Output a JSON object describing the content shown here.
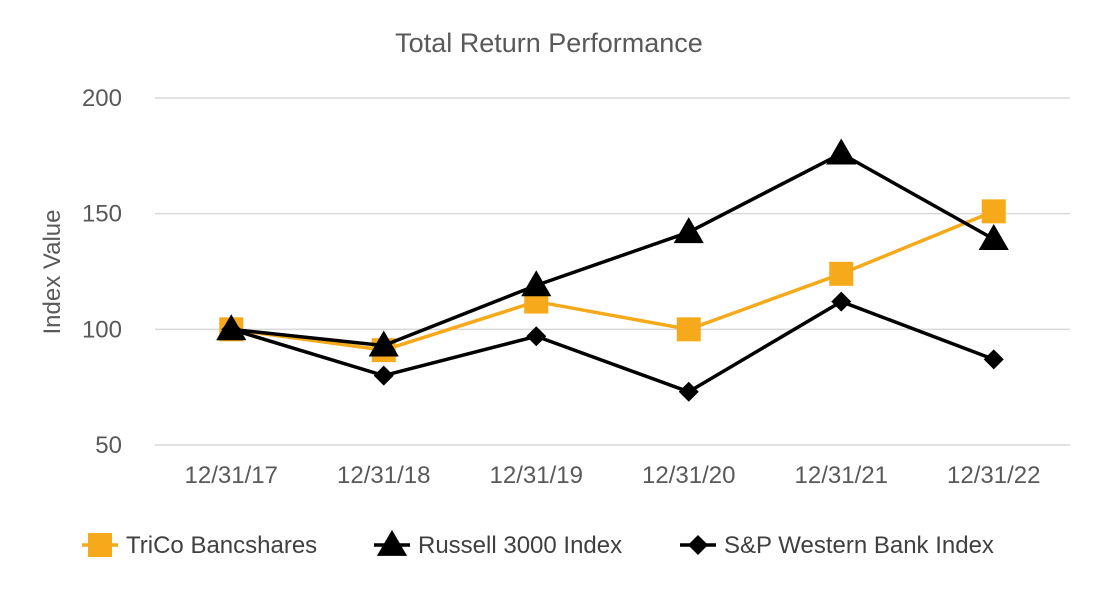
{
  "chart_data": {
    "type": "line",
    "title": "Total Return Performance",
    "xlabel": "",
    "ylabel": "Index Value",
    "categories": [
      "12/31/17",
      "12/31/18",
      "12/31/19",
      "12/31/20",
      "12/31/21",
      "12/31/22"
    ],
    "ylim": [
      50,
      200
    ],
    "yticks": [
      50,
      100,
      150,
      200
    ],
    "grid": true,
    "legend_position": "bottom",
    "series": [
      {
        "name": "TriCo Bancshares",
        "values": [
          100,
          91,
          112,
          100,
          124,
          151
        ],
        "color": "#f5a91b",
        "marker": "square"
      },
      {
        "name": "Russell 3000 Index",
        "values": [
          100,
          93,
          119,
          142,
          176,
          139
        ],
        "color": "#000000",
        "marker": "triangle"
      },
      {
        "name": "S&P Western Bank Index",
        "values": [
          100,
          80,
          97,
          73,
          112,
          87
        ],
        "color": "#000000",
        "marker": "diamond"
      }
    ]
  }
}
